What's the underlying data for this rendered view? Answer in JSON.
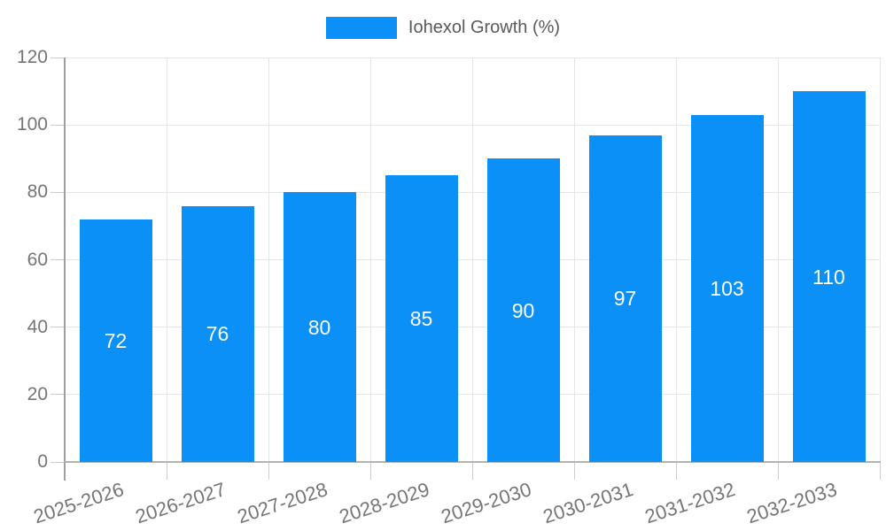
{
  "legend": {
    "label": "Iohexol Growth (%)"
  },
  "colors": {
    "bar": "#0a90f6",
    "grid": "#e5e5e5",
    "tick": "#cccccc",
    "axis_line": "#9e9e9e",
    "x_axis_line": "#b3b3b3",
    "axis_text": "#757575",
    "legend_text": "#595959",
    "bar_label_text": "#ffffff"
  },
  "chart_data": {
    "type": "bar",
    "title": "Iohexol Growth (%)",
    "categories": [
      "2025-2026",
      "2026-2027",
      "2027-2028",
      "2028-2029",
      "2029-2030",
      "2030-2031",
      "2031-2032",
      "2032-2033"
    ],
    "values": [
      72,
      76,
      80,
      85,
      90,
      97,
      103,
      110
    ],
    "bar_value_labels": [
      72,
      76,
      80,
      85,
      90,
      97,
      103,
      110
    ],
    "xlabel": "",
    "ylabel": "",
    "ylim": [
      0,
      120
    ],
    "yticks": [
      0,
      20,
      40,
      60,
      80,
      100,
      120
    ],
    "grid": true,
    "legend_position": "top-center",
    "x_label_rotation_deg": -18
  }
}
